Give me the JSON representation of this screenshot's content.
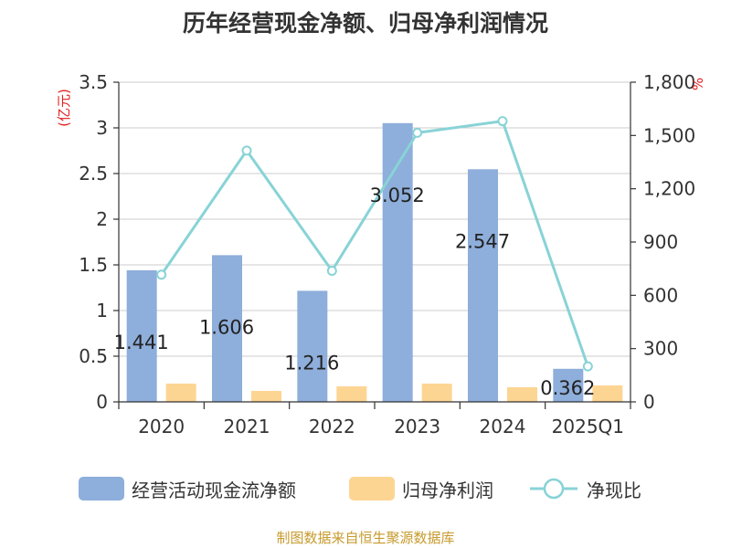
{
  "title": "历年经营现金净额、归母净利润情况",
  "source": "制图数据来自恒生聚源数据库",
  "chart_data": {
    "type": "bar",
    "categories": [
      "2020",
      "2021",
      "2022",
      "2023",
      "2024",
      "2025Q1"
    ],
    "left_axis": {
      "unit": "(亿元)",
      "ticks": [
        "0",
        "0.5",
        "1",
        "1.5",
        "2",
        "2.5",
        "3",
        "3.5"
      ],
      "range": [
        0,
        3.5
      ]
    },
    "right_axis": {
      "unit": "%",
      "ticks": [
        "0",
        "300",
        "600",
        "900",
        "1,200",
        "1,500",
        "1,800"
      ],
      "range": [
        0,
        1800
      ]
    },
    "series": [
      {
        "name": "经营活动现金流净额",
        "type": "bar",
        "axis": "left",
        "color": "#8eaedb",
        "values": [
          1.441,
          1.606,
          1.216,
          3.052,
          2.547,
          0.362
        ],
        "labels": [
          "1.441",
          "1.606",
          "1.216",
          "3.052",
          "2.547",
          "0.362"
        ]
      },
      {
        "name": "归母净利润",
        "type": "bar",
        "axis": "left",
        "color": "#fdd593",
        "values": [
          0.2,
          0.12,
          0.17,
          0.2,
          0.16,
          0.18
        ]
      },
      {
        "name": "净现比",
        "type": "line",
        "axis": "right",
        "color": "#88d3d6",
        "values": [
          716,
          1415,
          738,
          1515,
          1581,
          200
        ]
      }
    ],
    "grid": true,
    "legend": "bottom"
  }
}
